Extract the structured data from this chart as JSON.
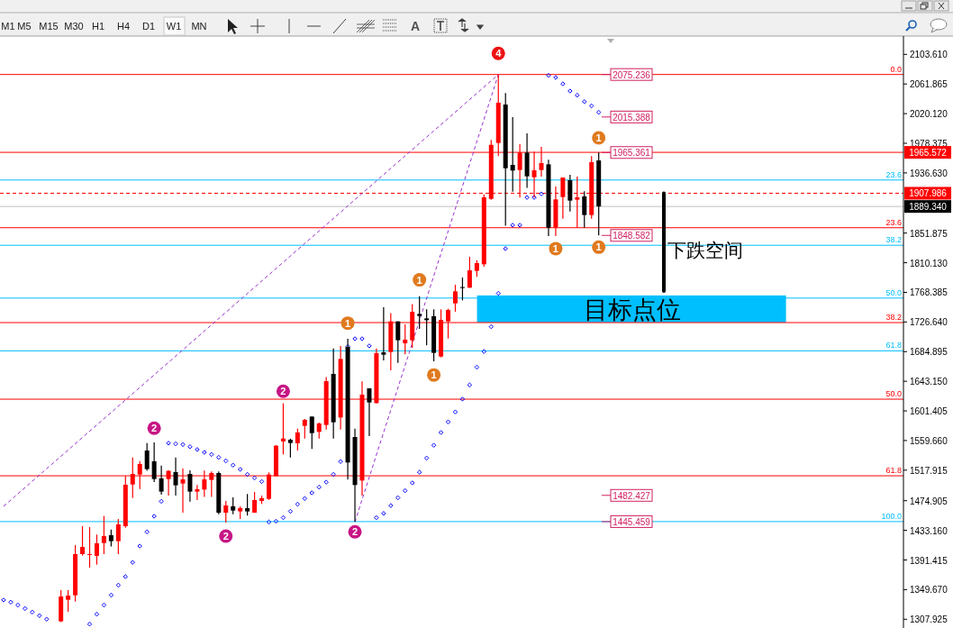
{
  "chart_data": {
    "type": "candlestick",
    "categories": [
      null,
      null,
      null,
      null,
      null,
      null,
      null,
      null,
      null,
      null,
      null,
      null,
      null,
      null,
      null,
      null,
      null,
      null,
      null,
      null,
      null,
      null,
      null,
      null,
      null,
      null,
      null,
      null,
      null,
      null,
      null,
      null,
      null,
      null,
      null,
      null,
      null,
      null,
      null,
      null,
      null,
      null,
      null,
      null,
      null,
      null,
      null,
      null,
      null,
      null,
      null,
      null,
      null,
      null,
      null,
      null,
      null,
      null,
      null,
      null,
      null,
      null,
      null,
      null,
      null,
      null,
      null,
      null,
      null,
      null,
      null,
      null,
      null,
      null,
      null,
      null,
      null,
      null,
      null,
      null,
      null,
      null,
      null,
      null,
      null,
      null,
      null,
      null,
      null,
      null,
      null,
      null,
      null,
      null,
      null,
      null,
      null,
      null,
      null,
      null,
      null,
      null,
      null,
      null,
      null,
      null,
      null,
      null,
      null,
      null,
      null,
      null,
      null,
      null,
      null,
      null,
      null,
      null,
      null,
      null,
      null,
      null,
      null,
      null,
      null,
      null
    ],
    "ylim": [
      1295.6,
      2129.4
    ],
    "tick_labels": "y",
    "yticks": [
      {
        "value": 2103.61,
        "label": "2103.610"
      },
      {
        "value": 2061.865,
        "label": "2061.865"
      },
      {
        "value": 2020.12,
        "label": "2020.120"
      },
      {
        "value": 1978.375,
        "label": "1978.375"
      },
      {
        "value": 1936.63,
        "label": "1936.630"
      },
      {
        "value": 1851.875,
        "label": "1851.875"
      },
      {
        "value": 1810.13,
        "label": "1810.130"
      },
      {
        "value": 1768.385,
        "label": "1768.385"
      },
      {
        "value": 1726.64,
        "label": "1726.640"
      },
      {
        "value": 1684.895,
        "label": "1684.895"
      },
      {
        "value": 1643.15,
        "label": "1643.150"
      },
      {
        "value": 1601.405,
        "label": "1601.405"
      },
      {
        "value": 1559.66,
        "label": "1559.660"
      },
      {
        "value": 1517.915,
        "label": "1517.915"
      },
      {
        "value": 1474.905,
        "label": "1474.905"
      },
      {
        "value": 1433.16,
        "label": "1433.160"
      },
      {
        "value": 1391.415,
        "label": "1391.415"
      },
      {
        "value": 1349.67,
        "label": "1349.670"
      },
      {
        "value": 1307.925,
        "label": "1307.925"
      }
    ],
    "series": [
      {
        "type": "line",
        "color": "#9932cc",
        "line_style": "dashed",
        "values": [
          1467,
          null,
          null,
          null,
          null,
          null,
          null,
          null,
          null,
          null,
          null,
          null,
          null,
          null,
          null,
          null,
          null,
          null,
          null,
          null,
          null,
          null,
          null,
          null,
          null,
          null,
          null,
          null,
          null,
          null,
          null,
          null,
          null,
          null,
          null,
          null,
          null,
          null,
          null,
          null,
          null,
          null,
          null,
          null,
          null,
          null,
          null,
          null,
          null,
          null,
          null,
          null,
          null,
          null,
          null,
          null,
          null,
          null,
          null,
          null,
          null,
          null,
          null,
          null,
          null,
          null,
          null,
          null,
          null,
          2075.2,
          null,
          null,
          null,
          null,
          null,
          null,
          null,
          null,
          null,
          null,
          null,
          null,
          null,
          null,
          null,
          null,
          null,
          null,
          null,
          null,
          null,
          null,
          null,
          null,
          null,
          null,
          null,
          null,
          null,
          null,
          null,
          null,
          null,
          null,
          null,
          null,
          null,
          null,
          null,
          null,
          null,
          null,
          null,
          null,
          null,
          null,
          null,
          null,
          null,
          null,
          null,
          null,
          null,
          null,
          null,
          null
        ]
      },
      {
        "type": "line",
        "color": "#9932cc",
        "line_style": "dashed",
        "values": [
          null,
          null,
          null,
          null,
          null,
          null,
          null,
          null,
          null,
          null,
          null,
          null,
          null,
          null,
          null,
          null,
          null,
          null,
          null,
          null,
          null,
          null,
          null,
          null,
          null,
          null,
          null,
          null,
          null,
          null,
          null,
          null,
          null,
          null,
          null,
          null,
          null,
          null,
          null,
          null,
          null,
          null,
          null,
          null,
          null,
          null,
          null,
          null,
          null,
          1445,
          null,
          null,
          null,
          null,
          null,
          null,
          null,
          null,
          null,
          null,
          null,
          null,
          null,
          null,
          null,
          null,
          null,
          null,
          null,
          2075.2,
          null,
          null,
          null,
          null,
          null,
          null,
          null,
          null,
          null,
          null,
          null,
          null,
          null,
          null,
          null,
          null,
          null,
          null,
          null,
          null,
          null,
          null,
          null,
          null,
          null,
          null,
          null,
          null,
          null,
          null,
          null,
          null,
          null,
          null,
          null,
          null,
          null,
          null,
          null,
          null,
          null,
          null,
          null,
          null,
          null,
          null,
          null,
          null,
          null,
          null,
          null,
          null,
          null,
          null,
          null,
          null
        ]
      },
      {
        "type": "scatter",
        "color": "#0000ff",
        "marker": "diamond",
        "values": [
          1335,
          1332,
          1328,
          1323,
          1318,
          1313,
          1308,
          null,
          null,
          null,
          null,
          null,
          1301,
          1315,
          1328,
          1342,
          1356,
          1368,
          1388,
          1411,
          1431,
          1453,
          1474,
          1556,
          1555,
          1554,
          1551,
          1547,
          1543,
          1540,
          1536,
          1531,
          1525,
          1519,
          1512,
          1507,
          1502,
          1445,
          1446,
          1451,
          1460,
          1470,
          1478,
          1486,
          1494,
          1501,
          1512,
          1530,
          1692,
          1703,
          1703,
          1693,
          1451,
          1457,
          1468,
          1479,
          1489,
          1500,
          1515,
          1535,
          1553,
          1571,
          1586,
          1600,
          1618,
          1638,
          1663,
          1685,
          1720,
          1767,
          1830,
          1863,
          1863,
          1902,
          1902,
          1907,
          2074,
          2071,
          2062,
          2052,
          2046,
          2037,
          2031,
          2022,
          null,
          null,
          null,
          null,
          null,
          null,
          null,
          null,
          null,
          null,
          null,
          null,
          null,
          null,
          null,
          null,
          null,
          null,
          null,
          null,
          null,
          null,
          null,
          null,
          null,
          null,
          null,
          null,
          null,
          null,
          null,
          null,
          null,
          null,
          null,
          null,
          null,
          null,
          null,
          null,
          null,
          null
        ]
      },
      {
        "colors": [
          null,
          null,
          null,
          null,
          null,
          null,
          null,
          null,
          "#ff0000",
          "#ff0000",
          "#ff0000",
          "#ff0000",
          "#ff0000",
          "#ff0000",
          "#ff0000",
          "#000000",
          "#ff0000",
          "#ff0000",
          "#ff0000",
          "#ff0000",
          "#000000",
          "#000000",
          "#000000",
          "#ff0000",
          "#000000",
          "#ff0000",
          "#000000",
          "#ff0000",
          "#ff0000",
          "#ff0000",
          "#000000",
          "#ff0000",
          "#000000",
          "#ff0000",
          "#000000",
          "#ff0000",
          "#ff0000",
          "#ff0000",
          "#ff0000",
          "#ff0000",
          "#000000",
          "#ff0000",
          "#ff0000",
          "#000000",
          "#ff0000",
          "#ff0000",
          "#000000",
          "#ff0000",
          "#000000",
          "#000000",
          "#ff0000",
          "#000000",
          "#ff0000",
          "#000000",
          "#ff0000",
          "#000000",
          "#ff0000",
          "#ff0000",
          "#000000",
          "#000000",
          "#000000",
          "#ff0000",
          "#ff0000",
          "#ff0000",
          "#000000",
          "#ff0000",
          "#ff0000",
          "#ff0000",
          "#ff0000",
          "#ff0000",
          "#000000",
          "#000000",
          "#ff0000",
          "#000000",
          "#ff0000",
          "#ff0000",
          "#000000",
          "#ff0000",
          "#ff0000",
          "#000000",
          "#ff0000",
          "#000000",
          "#ff0000",
          "#000000",
          null,
          null,
          null,
          null,
          null,
          null,
          null,
          null,
          null,
          null,
          null,
          null,
          null,
          null,
          null,
          null,
          null,
          null,
          null,
          null,
          null,
          null,
          null,
          null,
          null,
          null,
          null,
          null,
          null,
          null,
          null,
          null,
          null,
          null,
          null,
          null,
          null,
          null,
          null,
          null,
          null,
          null
        ],
        "ohlc": [
          null,
          null,
          null,
          null,
          null,
          null,
          null,
          null,
          [
            1305,
            1349,
            1304,
            1340
          ],
          [
            1335.4,
            1349,
            1318.5,
            1341.3
          ],
          [
            1341.7,
            1412.4,
            1332.9,
            1399.7
          ],
          [
            1399.7,
            1439,
            1397.6,
            1409.8
          ],
          [
            1398.6,
            1437.8,
            1380.7,
            1399.8
          ],
          [
            1397.2,
            1427.2,
            1384.9,
            1414.9
          ],
          [
            1415.3,
            1453.4,
            1399.7,
            1425.1
          ],
          [
            1426.3,
            1434.4,
            1410.3,
            1417.9
          ],
          [
            1417.9,
            1449.2,
            1399.7,
            1441.6
          ],
          [
            1439,
            1509.7,
            1436.9,
            1497.4
          ],
          [
            1497.8,
            1535.9,
            1478.8,
            1512.6
          ],
          [
            1511.8,
            1530.8,
            1491.5,
            1526.6
          ],
          [
            1545.6,
            1556.2,
            1516.9,
            1519.4
          ],
          [
            1530.4,
            1557.1,
            1501.2,
            1505.4
          ],
          [
            1506.3,
            1524.5,
            1483.4,
            1487.7
          ],
          [
            1505.4,
            1518.1,
            1482.2,
            1516.9
          ],
          [
            1515.2,
            1535.9,
            1482.2,
            1496.6
          ],
          [
            1499.1,
            1520.2,
            1458,
            1505
          ],
          [
            1512.6,
            1517.7,
            1473.7,
            1487.7
          ],
          [
            1487.7,
            1497,
            1475.8,
            1491.1
          ],
          [
            1490.6,
            1517.3,
            1480.1,
            1505
          ],
          [
            1504.2,
            1516,
            1480.1,
            1513.9
          ],
          [
            1513.9,
            1516,
            1455.9,
            1458
          ],
          [
            1458,
            1474.6,
            1444.1,
            1468.2
          ],
          [
            1467,
            1479.6,
            1455.9,
            1461
          ],
          [
            1459.8,
            1467,
            1449.2,
            1464.4
          ],
          [
            1464.4,
            1484.3,
            1453.8,
            1459.8
          ],
          [
            1458,
            1487.2,
            1458,
            1475.8
          ],
          [
            1474.6,
            1482.2,
            1470.3,
            1478.4
          ],
          [
            1477.5,
            1514.7,
            1476,
            1511.8
          ],
          [
            1509.6,
            1553.2,
            1509.6,
            1552.4
          ],
          [
            1558.3,
            1612,
            1540.1,
            1562.5
          ],
          [
            1560.8,
            1562.5,
            1535.9,
            1556.2
          ],
          [
            1555.8,
            1576.5,
            1545.6,
            1571
          ],
          [
            1580.3,
            1590,
            1562.5,
            1588.8
          ],
          [
            1593.4,
            1593.4,
            1547.7,
            1570.1
          ],
          [
            1571.8,
            1584.9,
            1562.5,
            1583.7
          ],
          [
            1581.6,
            1649.2,
            1575.2,
            1643.3
          ],
          [
            1653.5,
            1689.4,
            1562.5,
            1585.4
          ],
          [
            1592.1,
            1692.8,
            1575.2,
            1674.6
          ],
          [
            1691.6,
            1703,
            1504.6,
            1528.7
          ],
          [
            1564.6,
            1576.5,
            1445.5,
            1497
          ],
          [
            1503.3,
            1642.9,
            1482.1,
            1624.3
          ],
          [
            1633.2,
            1633.2,
            1565.9,
            1613.3
          ],
          [
            1612.4,
            1689.4,
            1611.6,
            1682.7
          ],
          [
            1683.9,
            1747.4,
            1672.5,
            1680.6
          ],
          [
            1684.3,
            1739,
            1658.5,
            1727.5
          ],
          [
            1727.5,
            1727.5,
            1669.1,
            1700.9
          ],
          [
            1696.6,
            1723.3,
            1681,
            1701.7
          ],
          [
            1700.9,
            1752,
            1690.3,
            1741
          ],
          [
            1738,
            1763,
            1716.9,
            1735.1
          ],
          [
            1731.7,
            1744.4,
            1693.7,
            1729.2
          ],
          [
            1734.7,
            1744.4,
            1671.2,
            1683.1
          ],
          [
            1678,
            1744.4,
            1676.7,
            1729.6
          ],
          [
            1727.5,
            1745.3,
            1703.4,
            1743.6
          ],
          [
            1752.9,
            1779.1,
            1741,
            1769.8
          ],
          [
            1775.8,
            1789.3,
            1757.1,
            1774.5
          ],
          [
            1774.9,
            1818.5,
            1774.9,
            1799.4
          ],
          [
            1798.6,
            1813.8,
            1790.1,
            1809.6
          ],
          [
            1807.9,
            1906.4,
            1804.5,
            1902.2
          ],
          [
            1900.1,
            1983,
            1898.8,
            1976.2
          ],
          [
            1978.8,
            2075.2,
            1960.2,
            2035.5
          ],
          [
            2032.9,
            2049,
            1862.4,
            1943.2
          ],
          [
            1947.9,
            2015.2,
            1910.3,
            1939.9
          ],
          [
            1940.7,
            1977.1,
            1901.8,
            1965.2
          ],
          [
            1965.2,
            1992.3,
            1915.7,
            1931.8
          ],
          [
            1930.5,
            1966.5,
            1901.8,
            1940.3
          ],
          [
            1940.7,
            1973.3,
            1931.4,
            1950.4
          ],
          [
            1948.7,
            1955.1,
            1847.6,
            1859.5
          ],
          [
            1859.5,
            1917.4,
            1847.6,
            1899.3
          ],
          [
            1902.6,
            1930.1,
            1872.2,
            1930.1
          ],
          [
            1926.3,
            1933.9,
            1882.3,
            1897.6
          ],
          [
            1898.9,
            1931.4,
            1859.5,
            1902.2
          ],
          [
            1903.5,
            1910.7,
            1859.5,
            1877.3
          ],
          [
            1877.3,
            1960.2,
            1872.2,
            1951.7
          ],
          [
            1954.2,
            1965.4,
            1848.6,
            1889.34
          ],
          null,
          null,
          null,
          null,
          null,
          null,
          null,
          null,
          null,
          null,
          null,
          null,
          null,
          null,
          null,
          null,
          null,
          null,
          null,
          null,
          null,
          null,
          null,
          null,
          null,
          null,
          null,
          null,
          null,
          null,
          null,
          null,
          null,
          null,
          null,
          null,
          null,
          null,
          null,
          null,
          null,
          null
        ]
      },
      {
        "type": "scatter",
        "name": "1",
        "color": "#e07a1f",
        "marker": "circle",
        "values": [
          null,
          null,
          null,
          null,
          null,
          null,
          null,
          null,
          null,
          null,
          null,
          null,
          null,
          null,
          null,
          null,
          null,
          null,
          null,
          null,
          null,
          null,
          null,
          null,
          null,
          null,
          null,
          null,
          null,
          null,
          null,
          null,
          null,
          null,
          null,
          null,
          null,
          null,
          null,
          null,
          null,
          null,
          null,
          null,
          null,
          null,
          null,
          null,
          1725,
          null,
          null,
          null,
          null,
          null,
          null,
          null,
          null,
          null,
          1786,
          null,
          1652,
          null,
          null,
          null,
          null,
          null,
          null,
          null,
          null,
          null,
          null,
          null,
          null,
          null,
          null,
          null,
          null,
          1830,
          null,
          null,
          null,
          null,
          null,
          1986,
          null,
          null,
          null,
          null,
          null,
          null,
          null,
          null,
          null,
          null,
          null,
          null,
          null,
          null,
          null,
          null,
          null,
          null,
          null,
          null,
          null,
          null,
          null,
          null,
          null,
          null,
          null,
          null,
          null,
          null,
          null,
          null,
          null,
          null,
          null,
          null,
          null,
          null,
          null,
          null,
          null,
          null
        ]
      },
      {
        "type": "scatter",
        "name": "1",
        "color": "#e07a1f",
        "marker": "circle",
        "values": [
          null,
          null,
          null,
          null,
          null,
          null,
          null,
          null,
          null,
          null,
          null,
          null,
          null,
          null,
          null,
          null,
          null,
          null,
          null,
          null,
          null,
          null,
          null,
          null,
          null,
          null,
          null,
          null,
          null,
          null,
          null,
          null,
          null,
          null,
          null,
          null,
          null,
          null,
          null,
          null,
          null,
          null,
          null,
          null,
          null,
          null,
          null,
          null,
          null,
          null,
          null,
          null,
          null,
          null,
          null,
          null,
          null,
          null,
          null,
          null,
          null,
          null,
          null,
          null,
          null,
          null,
          null,
          null,
          null,
          null,
          null,
          null,
          null,
          null,
          null,
          null,
          null,
          null,
          null,
          null,
          null,
          null,
          null,
          1832,
          null,
          null,
          null,
          null,
          null,
          null,
          null,
          null,
          null,
          null,
          null,
          null,
          null,
          null,
          null,
          null,
          null,
          null,
          null,
          null,
          null,
          null,
          null,
          null,
          null,
          null,
          null,
          null,
          null,
          null,
          null,
          null,
          null,
          null,
          null,
          null,
          null,
          null,
          null,
          null,
          null,
          null
        ]
      },
      {
        "type": "scatter",
        "name": "2",
        "color": "#c71585",
        "marker": "circle",
        "values": [
          null,
          null,
          null,
          null,
          null,
          null,
          null,
          null,
          null,
          null,
          null,
          null,
          null,
          null,
          null,
          null,
          null,
          null,
          null,
          null,
          null,
          1577,
          null,
          null,
          null,
          null,
          null,
          null,
          null,
          null,
          null,
          1425,
          null,
          null,
          null,
          null,
          null,
          null,
          null,
          1629,
          null,
          null,
          null,
          null,
          null,
          null,
          null,
          null,
          null,
          1431,
          null,
          null,
          null,
          null,
          null,
          null,
          null,
          null,
          null,
          null,
          null,
          null,
          null,
          null,
          null,
          null,
          null,
          null,
          null,
          null,
          null,
          null,
          null,
          null,
          null,
          null,
          null,
          null,
          null,
          null,
          null,
          null,
          null,
          null,
          null,
          null,
          null,
          null,
          null,
          null,
          null,
          null,
          null,
          null,
          null,
          null,
          null,
          null,
          null,
          null,
          null,
          null,
          null,
          null,
          null,
          null,
          null,
          null,
          null,
          null,
          null,
          null,
          null,
          null,
          null,
          null,
          null,
          null,
          null,
          null,
          null,
          null,
          null,
          null,
          null,
          null
        ]
      },
      {
        "type": "scatter",
        "name": "4",
        "color": "#ee1111",
        "marker": "circle",
        "values": [
          null,
          null,
          null,
          null,
          null,
          null,
          null,
          null,
          null,
          null,
          null,
          null,
          null,
          null,
          null,
          null,
          null,
          null,
          null,
          null,
          null,
          null,
          null,
          null,
          null,
          null,
          null,
          null,
          null,
          null,
          null,
          null,
          null,
          null,
          null,
          null,
          null,
          null,
          null,
          null,
          null,
          null,
          null,
          null,
          null,
          null,
          null,
          null,
          null,
          null,
          null,
          null,
          null,
          null,
          null,
          null,
          null,
          null,
          null,
          null,
          null,
          null,
          null,
          null,
          null,
          null,
          null,
          null,
          null,
          2105,
          null,
          null,
          null,
          null,
          null,
          null,
          null,
          null,
          null,
          null,
          null,
          null,
          null,
          null,
          null,
          null,
          null,
          null,
          null,
          null,
          null,
          null,
          null,
          null,
          null,
          null,
          null,
          null,
          null,
          null,
          null,
          null,
          null,
          null,
          null,
          null,
          null,
          null,
          null,
          null,
          null,
          null,
          null,
          null,
          null,
          null,
          null,
          null,
          null,
          null,
          null,
          null,
          null,
          null,
          null,
          null
        ]
      }
    ],
    "ref_lines": [
      {
        "axis": "y",
        "value": 2075.236,
        "color": "#ff0000"
      },
      {
        "axis": "y",
        "value": 1859.4,
        "color": "#ff0000"
      },
      {
        "axis": "y",
        "value": 1725.8,
        "color": "#ff0000"
      },
      {
        "axis": "y",
        "value": 1617.9,
        "color": "#ff0000"
      },
      {
        "axis": "y",
        "value": 1510,
        "color": "#ff0000"
      },
      {
        "axis": "y",
        "value": 1926.6,
        "color": "#00bfff"
      },
      {
        "axis": "y",
        "value": 1834.7,
        "color": "#00bfff"
      },
      {
        "axis": "y",
        "value": 1760.3,
        "color": "#00bfff"
      },
      {
        "axis": "y",
        "value": 1686,
        "color": "#00bfff"
      },
      {
        "axis": "y",
        "value": 1445.459,
        "color": "#00bfff"
      },
      {
        "axis": "y",
        "value": 1965.572,
        "label": "1965.572",
        "color": "#ff0000"
      },
      {
        "axis": "y",
        "value": 1907.986,
        "label": "1907.986",
        "color": "#ff0000",
        "line_style": "dashed"
      },
      {
        "axis": "y",
        "value": 1889.34,
        "label": "1889.340",
        "color": "#c0c0c0"
      }
    ],
    "bands": [
      {
        "axis": "y",
        "from": 1726,
        "to": 1764,
        "label": "目标点位",
        "color": "#00bfff"
      }
    ],
    "annotations": [
      "M1",
      "M5",
      "M15",
      "M30",
      "H1",
      "H4",
      "D1",
      "W1",
      "MN",
      "A",
      "下跌空间",
      "2075.236",
      "2015.388",
      "1965.361",
      "1848.582",
      "1482.427",
      "1445.459",
      {
        "text": "0.0",
        "y": 2075.236
      },
      {
        "text": "23.6",
        "y": 1859.4
      },
      {
        "text": "38.2",
        "y": 1725.8
      },
      {
        "text": "50.0",
        "y": 1617.9
      },
      {
        "text": "61.8",
        "y": 1510
      },
      {
        "text": "23.6",
        "y": 1926.6
      },
      {
        "text": "38.2",
        "y": 1834.7
      },
      {
        "text": "50.0",
        "y": 1760.3
      },
      {
        "text": "61.8",
        "y": 1686
      },
      {
        "text": "100.0",
        "y": 1445.459
      }
    ]
  }
}
